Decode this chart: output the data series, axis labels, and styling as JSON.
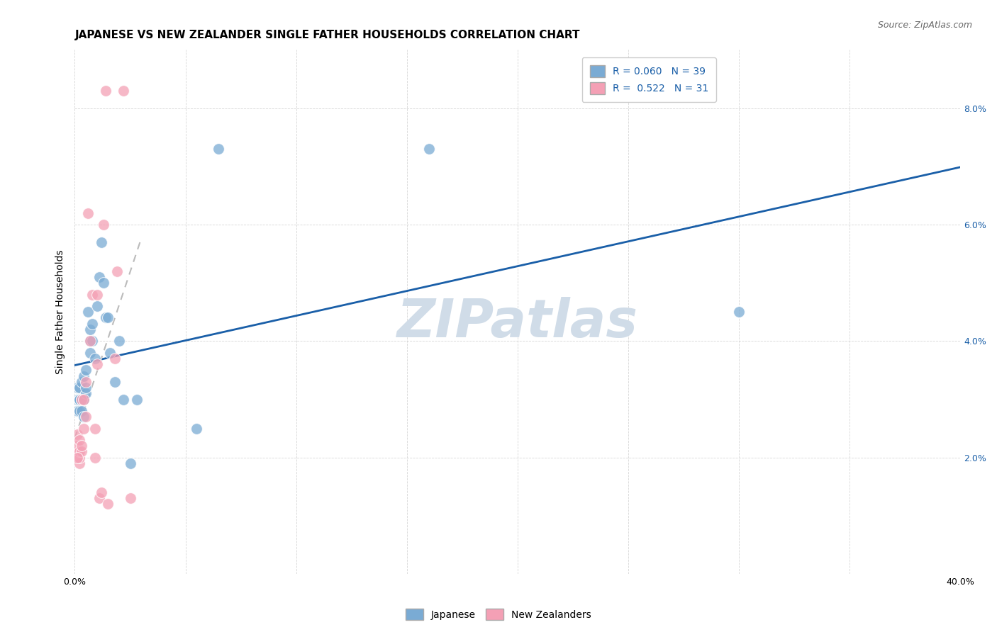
{
  "title": "JAPANESE VS NEW ZEALANDER SINGLE FATHER HOUSEHOLDS CORRELATION CHART",
  "source": "Source: ZipAtlas.com",
  "ylabel": "Single Father Households",
  "xlim": [
    0.0,
    0.4
  ],
  "ylim": [
    0.0,
    0.09
  ],
  "xticks": [
    0.0,
    0.05,
    0.1,
    0.15,
    0.2,
    0.25,
    0.3,
    0.35,
    0.4
  ],
  "yticks": [
    0.0,
    0.02,
    0.04,
    0.06,
    0.08
  ],
  "japanese_x": [
    0.001,
    0.001,
    0.001,
    0.002,
    0.002,
    0.002,
    0.002,
    0.003,
    0.003,
    0.003,
    0.004,
    0.004,
    0.004,
    0.005,
    0.005,
    0.005,
    0.006,
    0.007,
    0.007,
    0.007,
    0.008,
    0.008,
    0.009,
    0.01,
    0.011,
    0.012,
    0.013,
    0.014,
    0.015,
    0.016,
    0.018,
    0.02,
    0.022,
    0.025,
    0.028,
    0.055,
    0.065,
    0.16,
    0.3
  ],
  "japanese_y": [
    0.028,
    0.03,
    0.032,
    0.03,
    0.028,
    0.03,
    0.032,
    0.033,
    0.03,
    0.028,
    0.034,
    0.027,
    0.03,
    0.035,
    0.031,
    0.032,
    0.045,
    0.042,
    0.038,
    0.04,
    0.043,
    0.04,
    0.037,
    0.046,
    0.051,
    0.057,
    0.05,
    0.044,
    0.044,
    0.038,
    0.033,
    0.04,
    0.03,
    0.019,
    0.03,
    0.025,
    0.073,
    0.073,
    0.045
  ],
  "nz_x": [
    0.001,
    0.001,
    0.001,
    0.002,
    0.002,
    0.002,
    0.002,
    0.003,
    0.003,
    0.003,
    0.004,
    0.004,
    0.005,
    0.005,
    0.006,
    0.007,
    0.008,
    0.009,
    0.009,
    0.01,
    0.01,
    0.011,
    0.012,
    0.013,
    0.014,
    0.015,
    0.018,
    0.019,
    0.022,
    0.025,
    0.001
  ],
  "nz_y": [
    0.021,
    0.022,
    0.024,
    0.019,
    0.02,
    0.021,
    0.023,
    0.021,
    0.022,
    0.03,
    0.025,
    0.03,
    0.027,
    0.033,
    0.062,
    0.04,
    0.048,
    0.02,
    0.025,
    0.036,
    0.048,
    0.013,
    0.014,
    0.06,
    0.083,
    0.012,
    0.037,
    0.052,
    0.083,
    0.013,
    0.02
  ],
  "japanese_color": "#7aabd4",
  "nz_color": "#f4a0b5",
  "japanese_line_color": "#1a5fa8",
  "nz_line_color": "#d45f7a",
  "japanese_R": 0.06,
  "japanese_N": 39,
  "nz_R": 0.522,
  "nz_N": 31,
  "watermark": "ZIPatlas",
  "watermark_color": "#d0dce8",
  "background_color": "#ffffff",
  "grid_color": "#cccccc",
  "title_fontsize": 11,
  "axis_label_fontsize": 10,
  "tick_fontsize": 9,
  "legend_fontsize": 10,
  "source_fontsize": 9,
  "tick_color": "#1a5fa8"
}
